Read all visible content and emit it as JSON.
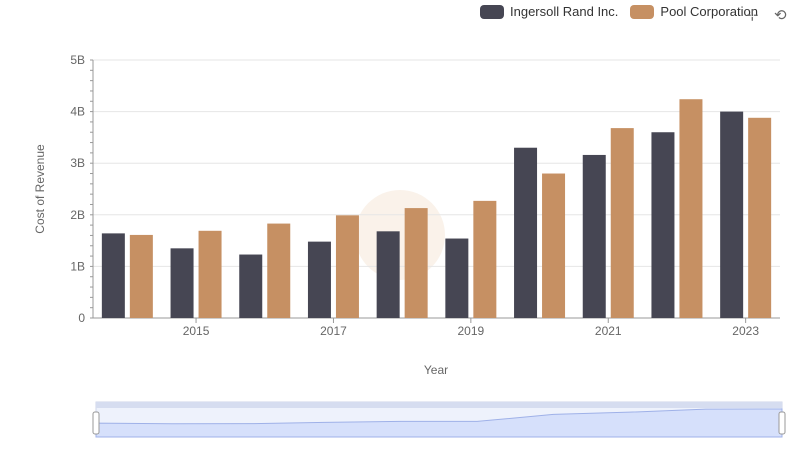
{
  "chart_data": {
    "type": "bar",
    "xlabel": "Year",
    "ylabel": "Cost of Revenue",
    "x": [
      2014,
      2015,
      2016,
      2017,
      2018,
      2019,
      2020,
      2021,
      2022,
      2023
    ],
    "x_ticks": [
      "2015",
      "2017",
      "2019",
      "2021",
      "2023"
    ],
    "y_ticks": [
      "0",
      "1B",
      "2B",
      "3B",
      "4B",
      "5B"
    ],
    "ylim": [
      0,
      5000000000
    ],
    "grid": true,
    "legend_position": "top-right",
    "series": [
      {
        "name": "Ingersoll Rand Inc.",
        "color": "#464653",
        "values": [
          1640000000,
          1350000000,
          1230000000,
          1480000000,
          1680000000,
          1540000000,
          3300000000,
          3160000000,
          3600000000,
          4000000000
        ]
      },
      {
        "name": "Pool Corporation",
        "color": "#c69063",
        "values": [
          1610000000,
          1690000000,
          1830000000,
          1990000000,
          2130000000,
          2270000000,
          2800000000,
          3680000000,
          4240000000,
          3880000000
        ]
      }
    ]
  },
  "toolbar": {
    "zoom_icon": "zoom-icon",
    "reset_icon": "reset-zoom-icon"
  },
  "slider": {
    "fill_color": "#d6e0fb"
  }
}
